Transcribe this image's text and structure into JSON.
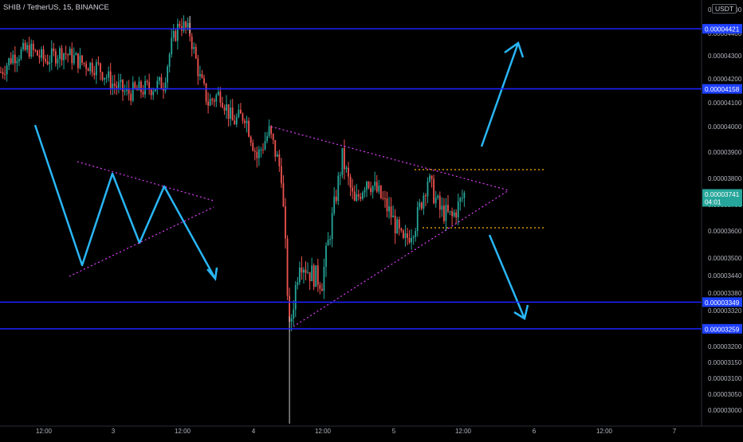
{
  "header": {
    "symbol_title": "SHIB / TetherUS, 15, BINANCE",
    "currency": "USDT"
  },
  "price_scale": {
    "ticks": [
      "0.00004400",
      "0.00004300",
      "0.00004200",
      "0.00004100",
      "0.00004000",
      "0.00003900",
      "0.00003800",
      "0.00003700",
      "0.00003600",
      "0.00003500",
      "0.00003440",
      "0.00003380",
      "0.00003320",
      "0.00003200",
      "0.00003150",
      "0.00003100",
      "0.00003050",
      "0.00003000"
    ],
    "top_cut_label": "0.00004500",
    "current_price_label": "0.00003741",
    "countdown_label": "04:01",
    "current_price_color": "#26a69a"
  },
  "time_axis": {
    "labels": [
      "12:00",
      "3",
      "12:00",
      "4",
      "12:00",
      "5",
      "12:00",
      "6",
      "12:00",
      "7"
    ]
  },
  "horizontal_levels": [
    {
      "price": 4.421e-05,
      "label": "0.00004421"
    },
    {
      "price": 4.158e-05,
      "label": "0.00004158"
    },
    {
      "price": 3.349e-05,
      "label": "0.00003349"
    },
    {
      "price": 3.259e-05,
      "label": "0.00003259"
    }
  ],
  "colors": {
    "background": "#000000",
    "candle_up": "#26a69a",
    "candle_down": "#ef5350",
    "level_line": "#1e22ff",
    "level_label_bg": "#1e40ff",
    "arrow": "#29b6f6",
    "triangle_line": "#e040fb",
    "range_line": "#ffb300"
  },
  "chart_data": {
    "type": "candlestick",
    "title": "SHIB / TetherUS, 15, BINANCE",
    "y_unit": "USDT",
    "ylim": [
      3e-05,
      4.5e-05
    ],
    "x_axis_labels": [
      "12:00",
      "3",
      "12:00",
      "4",
      "12:00",
      "5",
      "12:00",
      "6",
      "12:00",
      "7"
    ],
    "price_path": [
      {
        "t": 0,
        "price": 4.23e-05
      },
      {
        "t": 6,
        "price": 4.3e-05
      },
      {
        "t": 14,
        "price": 4.33e-05
      },
      {
        "t": 22,
        "price": 4.28e-05
      },
      {
        "t": 30,
        "price": 4.32e-05
      },
      {
        "t": 40,
        "price": 4.27e-05
      },
      {
        "t": 48,
        "price": 4.25e-05
      },
      {
        "t": 55,
        "price": 4.18e-05
      },
      {
        "t": 62,
        "price": 4.14e-05
      },
      {
        "t": 72,
        "price": 4.16e-05
      },
      {
        "t": 80,
        "price": 4.18e-05
      },
      {
        "t": 84,
        "price": 4.35e-05
      },
      {
        "t": 88,
        "price": 4.45e-05
      },
      {
        "t": 93,
        "price": 4.4e-05
      },
      {
        "t": 98,
        "price": 4.2e-05
      },
      {
        "t": 102,
        "price": 4.1e-05
      },
      {
        "t": 108,
        "price": 4.14e-05
      },
      {
        "t": 114,
        "price": 4.02e-05
      },
      {
        "t": 120,
        "price": 4.05e-05
      },
      {
        "t": 126,
        "price": 3.88e-05
      },
      {
        "t": 132,
        "price": 3.98e-05
      },
      {
        "t": 138,
        "price": 3.82e-05
      },
      {
        "t": 142,
        "price": 3.25e-05
      },
      {
        "t": 147,
        "price": 3.5e-05
      },
      {
        "t": 152,
        "price": 3.45e-05
      },
      {
        "t": 158,
        "price": 3.42e-05
      },
      {
        "t": 162,
        "price": 3.6e-05
      },
      {
        "t": 168,
        "price": 3.88e-05
      },
      {
        "t": 174,
        "price": 3.7e-05
      },
      {
        "t": 180,
        "price": 3.8e-05
      },
      {
        "t": 186,
        "price": 3.74e-05
      },
      {
        "t": 192,
        "price": 3.66e-05
      },
      {
        "t": 198,
        "price": 3.55e-05
      },
      {
        "t": 204,
        "price": 3.63e-05
      },
      {
        "t": 210,
        "price": 3.8e-05
      },
      {
        "t": 216,
        "price": 3.68e-05
      },
      {
        "t": 222,
        "price": 3.65e-05
      },
      {
        "t": 228,
        "price": 3.74e-05
      }
    ]
  }
}
